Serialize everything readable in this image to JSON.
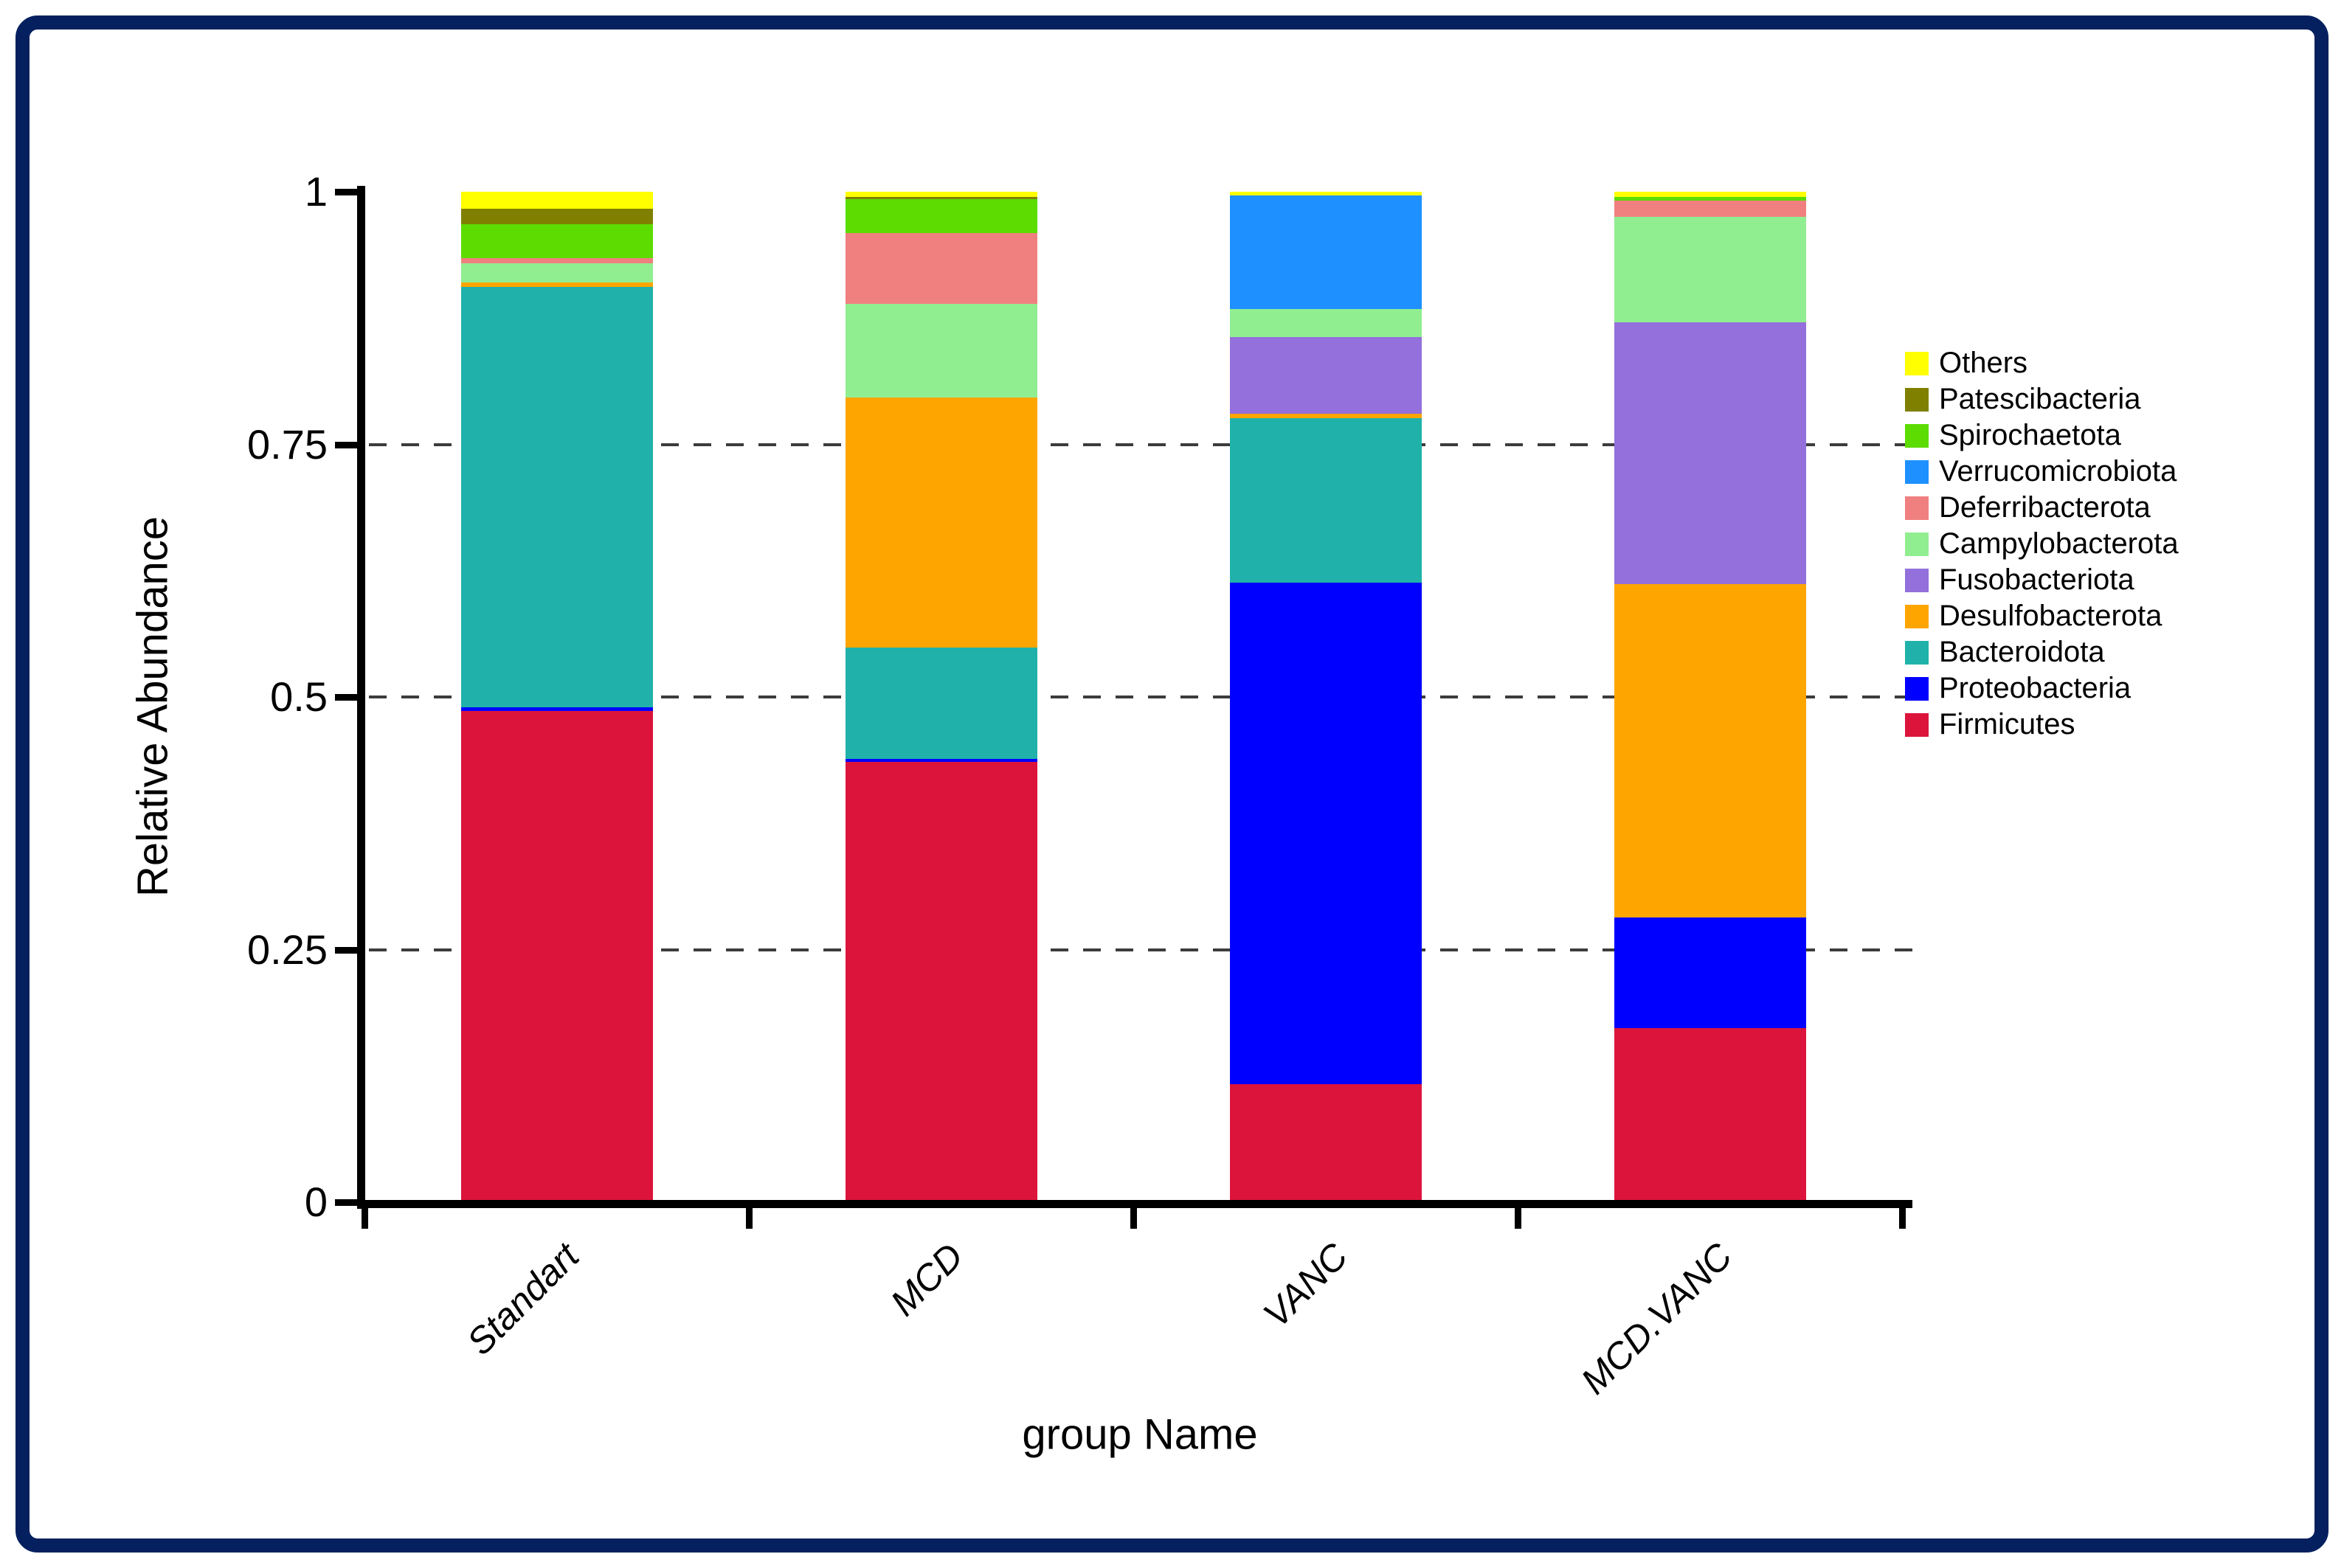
{
  "figure": {
    "border_color": "#04205e",
    "background_color": "#ffffff",
    "grid_color": "#3c3c3c",
    "axis_color": "#000000"
  },
  "chart_data": {
    "type": "bar",
    "stacked": true,
    "title": "",
    "xlabel": "group Name",
    "ylabel": "Relative Abundance",
    "categories": [
      "Standart",
      "MCD",
      "VANC",
      "MCD.VANC"
    ],
    "ylim": [
      0,
      1
    ],
    "y_ticks": [
      {
        "label": "0",
        "value": 0
      },
      {
        "label": "0.25",
        "value": 0.25
      },
      {
        "label": "0.5",
        "value": 0.5
      },
      {
        "label": "0.75",
        "value": 0.75
      },
      {
        "label": "1",
        "value": 1
      }
    ],
    "grid": "horizontal dashed at 0.25, 0.5, 0.75",
    "legend_position": "right",
    "legend_order_top_to_bottom": [
      "Others",
      "Patescibacteria",
      "Spirochaetota",
      "Verrucomicrobiota",
      "Deferribacterota",
      "Campylobacterota",
      "Fusobacteriota",
      "Desulfobacterota",
      "Bacteroidota",
      "Proteobacteria",
      "Firmicutes"
    ],
    "series_bottom_to_top": [
      {
        "name": "Firmicutes",
        "color": "#DC143C",
        "values": [
          0.486,
          0.436,
          0.117,
          0.172
        ]
      },
      {
        "name": "Proteobacteria",
        "color": "#0000FF",
        "values": [
          0.004,
          0.003,
          0.496,
          0.11
        ]
      },
      {
        "name": "Bacteroidota",
        "color": "#20B2AA",
        "values": [
          0.416,
          0.11,
          0.163,
          0.0
        ]
      },
      {
        "name": "Desulfobacterota",
        "color": "#FFA500",
        "values": [
          0.004,
          0.247,
          0.004,
          0.33
        ]
      },
      {
        "name": "Fusobacteriota",
        "color": "#9370DB",
        "values": [
          0.0,
          0.0,
          0.076,
          0.259
        ]
      },
      {
        "name": "Campylobacterota",
        "color": "#90EE90",
        "values": [
          0.019,
          0.093,
          0.028,
          0.104
        ]
      },
      {
        "name": "Deferribacterota",
        "color": "#F08080",
        "values": [
          0.005,
          0.07,
          0.0,
          0.016
        ]
      },
      {
        "name": "Verrucomicrobiota",
        "color": "#1E90FF",
        "values": [
          0.0,
          0.0,
          0.112,
          0.0
        ]
      },
      {
        "name": "Spirochaetota",
        "color": "#5CDC00",
        "values": [
          0.034,
          0.034,
          0.0,
          0.004
        ]
      },
      {
        "name": "Patescibacteria",
        "color": "#808000",
        "values": [
          0.015,
          0.002,
          0.0,
          0.0
        ]
      },
      {
        "name": "Others",
        "color": "#FFFF00",
        "values": [
          0.017,
          0.005,
          0.004,
          0.005
        ]
      }
    ]
  }
}
